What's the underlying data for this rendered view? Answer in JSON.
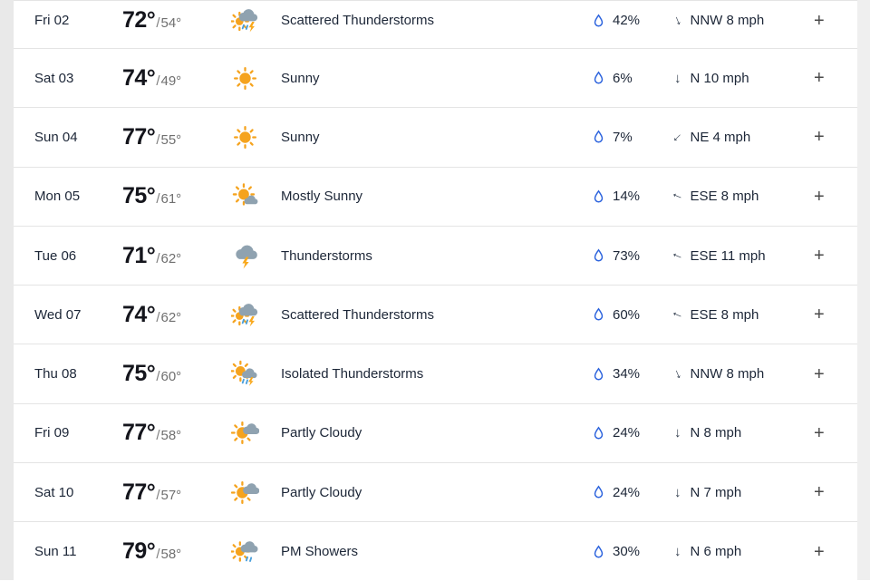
{
  "page": {
    "background": "#ffffff",
    "left_gutter_color": "#e9e9e9",
    "right_gutter_color": "#efefef",
    "divider_color": "#e4e4e4"
  },
  "colors": {
    "text_primary": "#1c2637",
    "text_high_temp": "#14151c",
    "text_low_temp": "#6f6f6f",
    "precip_droplet_blue": "#2c63dd",
    "sun_orange": "#f5a31e",
    "cloud_gray": "#8fa2b0",
    "lightning_orange": "#f9a81b",
    "rain_blue": "#4aa0dc",
    "arrow_dark": "#2e3a4b",
    "plus_gray": "#4a4a4a"
  },
  "forecast": {
    "temp_separator": "/",
    "expand_label": "+",
    "precip_icon": "droplet-icon",
    "wind_icon": "wind-direction-arrow-icon",
    "rows": [
      {
        "day": "Fri 02",
        "high": "72°",
        "low": "54°",
        "icon": "scattered-thunderstorms",
        "condition": "Scattered Thunderstorms",
        "precip": "42%",
        "wind": "NNW 8 mph"
      },
      {
        "day": "Sat 03",
        "high": "74°",
        "low": "49°",
        "icon": "sunny",
        "condition": "Sunny",
        "precip": "6%",
        "wind": "N 10 mph"
      },
      {
        "day": "Sun 04",
        "high": "77°",
        "low": "55°",
        "icon": "sunny",
        "condition": "Sunny",
        "precip": "7%",
        "wind": "NE 4 mph"
      },
      {
        "day": "Mon 05",
        "high": "75°",
        "low": "61°",
        "icon": "mostly-sunny",
        "condition": "Mostly Sunny",
        "precip": "14%",
        "wind": "ESE 8 mph"
      },
      {
        "day": "Tue 06",
        "high": "71°",
        "low": "62°",
        "icon": "thunderstorms",
        "condition": "Thunderstorms",
        "precip": "73%",
        "wind": "ESE 11 mph"
      },
      {
        "day": "Wed 07",
        "high": "74°",
        "low": "62°",
        "icon": "scattered-thunderstorms",
        "condition": "Scattered Thunderstorms",
        "precip": "60%",
        "wind": "ESE 8 mph"
      },
      {
        "day": "Thu 08",
        "high": "75°",
        "low": "60°",
        "icon": "isolated-thunderstorms",
        "condition": "Isolated Thunderstorms",
        "precip": "34%",
        "wind": "NNW 8 mph"
      },
      {
        "day": "Fri 09",
        "high": "77°",
        "low": "58°",
        "icon": "partly-cloudy",
        "condition": "Partly Cloudy",
        "precip": "24%",
        "wind": "N 8 mph"
      },
      {
        "day": "Sat 10",
        "high": "77°",
        "low": "57°",
        "icon": "partly-cloudy",
        "condition": "Partly Cloudy",
        "precip": "24%",
        "wind": "N 7 mph"
      },
      {
        "day": "Sun 11",
        "high": "79°",
        "low": "58°",
        "icon": "pm-showers",
        "condition": "PM Showers",
        "precip": "30%",
        "wind": "N 6 mph"
      }
    ]
  }
}
